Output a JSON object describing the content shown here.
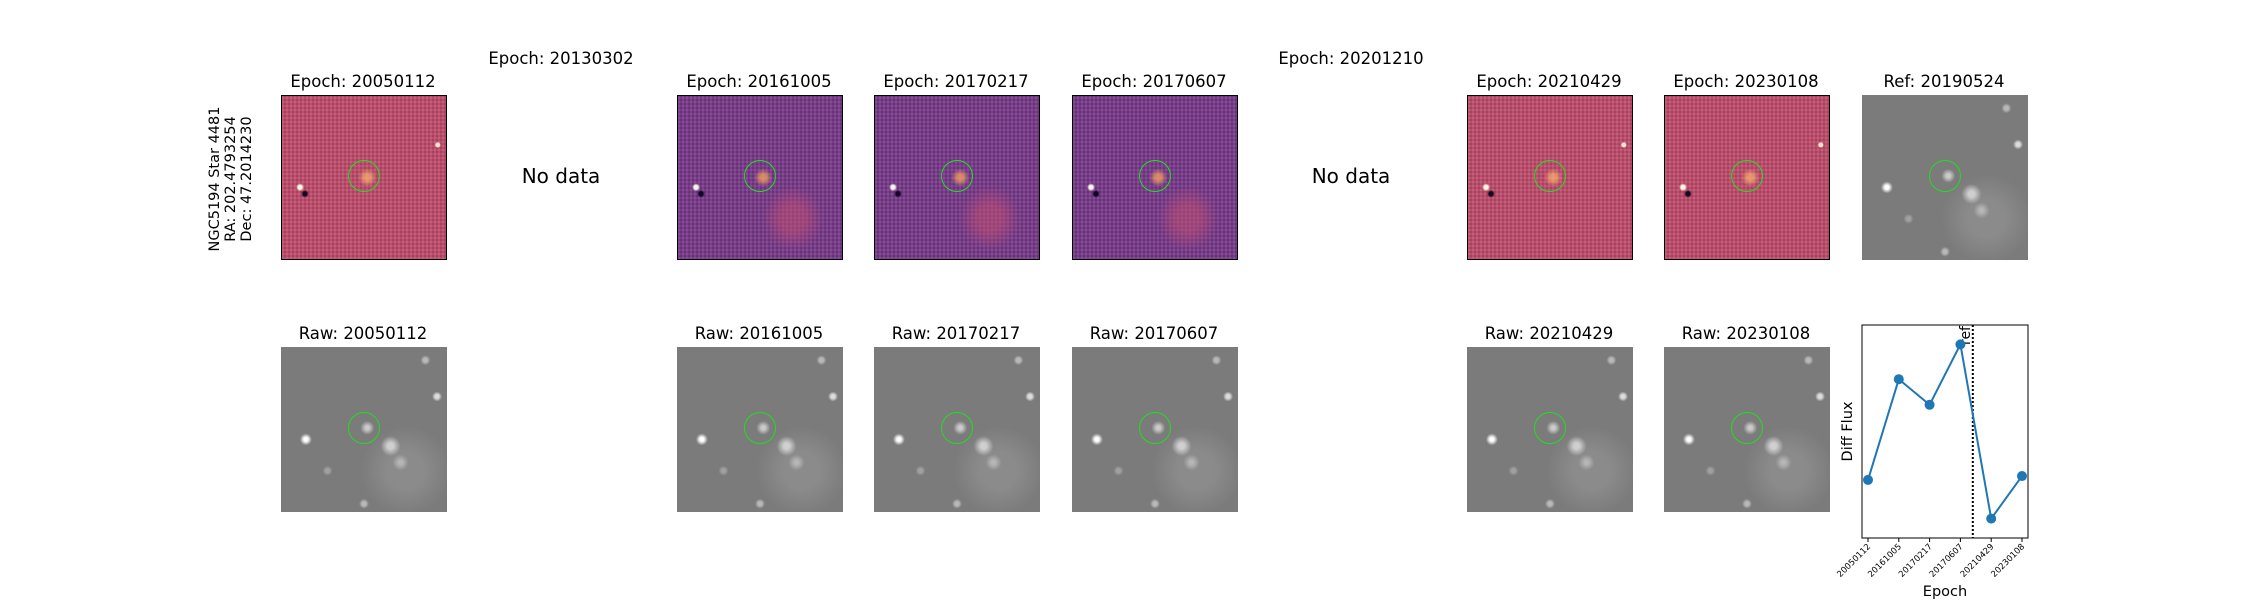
{
  "object_label": {
    "line1": "NGC5194 Star 4481",
    "line2": "RA: 202.4793254",
    "line3": "Dec: 47.2014230"
  },
  "diff_panels": [
    {
      "title": "Epoch: 20050112",
      "has_data": true,
      "shade": "light"
    },
    {
      "title": "Epoch: 20130302",
      "has_data": false,
      "no_data_text": "No data"
    },
    {
      "title": "Epoch: 20161005",
      "has_data": true,
      "shade": "dark"
    },
    {
      "title": "Epoch: 20170217",
      "has_data": true,
      "shade": "dark"
    },
    {
      "title": "Epoch: 20170607",
      "has_data": true,
      "shade": "dark"
    },
    {
      "title": "Epoch: 20201210",
      "has_data": false,
      "no_data_text": "No data"
    },
    {
      "title": "Epoch: 20210429",
      "has_data": true,
      "shade": "light"
    },
    {
      "title": "Epoch: 20230108",
      "has_data": true,
      "shade": "light"
    }
  ],
  "ref_panel": {
    "title": "Ref: 20190524"
  },
  "raw_panels": [
    {
      "title": "Raw: 20050112",
      "has_data": true
    },
    {
      "title": "",
      "has_data": false
    },
    {
      "title": "Raw: 20161005",
      "has_data": true
    },
    {
      "title": "Raw: 20170217",
      "has_data": true
    },
    {
      "title": "Raw: 20170607",
      "has_data": true
    },
    {
      "title": "",
      "has_data": false
    },
    {
      "title": "Raw: 20210429",
      "has_data": true
    },
    {
      "title": "Raw: 20230108",
      "has_data": true
    }
  ],
  "colors": {
    "circle": "#22dd22",
    "line": "#1f77b4",
    "ref_line": "#000000"
  },
  "chart_data": {
    "type": "line",
    "categories": [
      "20050112",
      "20161005",
      "20170217",
      "20170607",
      "20210429",
      "20230108"
    ],
    "values": [
      -0.55,
      0.75,
      0.42,
      1.2,
      -1.05,
      -0.5
    ],
    "ref_position_between": [
      3,
      4
    ],
    "ref_label": "ref",
    "xlabel": "Epoch",
    "ylabel": "Diff Flux",
    "title": "",
    "ylim": [
      -1.3,
      1.45
    ],
    "grid": false
  }
}
